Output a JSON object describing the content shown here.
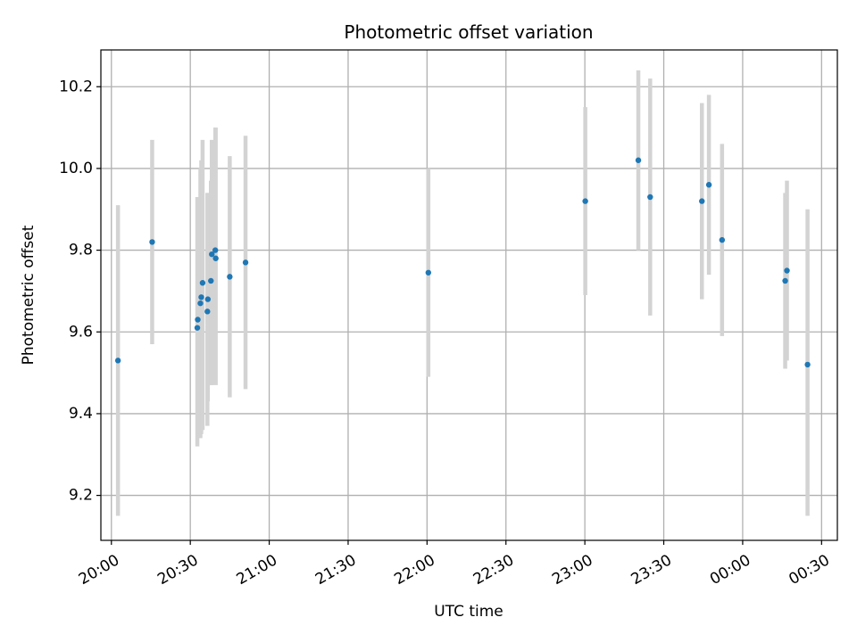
{
  "chart_data": {
    "type": "scatter",
    "title": "Photometric offset variation",
    "xlabel": "UTC time",
    "ylabel": "Photometric offset",
    "xlim": [
      "2000-01-01T19:56:00",
      "2000-01-02T00:36:00"
    ],
    "ylim": [
      9.09,
      10.29
    ],
    "grid": true,
    "x_ticks": [
      {
        "at": "2000-01-01T20:00:00",
        "label": "20:00"
      },
      {
        "at": "2000-01-01T20:30:00",
        "label": "20:30"
      },
      {
        "at": "2000-01-01T21:00:00",
        "label": "21:00"
      },
      {
        "at": "2000-01-01T21:30:00",
        "label": "21:30"
      },
      {
        "at": "2000-01-01T22:00:00",
        "label": "22:00"
      },
      {
        "at": "2000-01-01T22:30:00",
        "label": "22:30"
      },
      {
        "at": "2000-01-01T23:00:00",
        "label": "23:00"
      },
      {
        "at": "2000-01-01T23:30:00",
        "label": "23:30"
      },
      {
        "at": "2000-01-02T00:00:00",
        "label": "00:00"
      },
      {
        "at": "2000-01-02T00:30:00",
        "label": "00:30"
      }
    ],
    "y_ticks": [
      {
        "value": 9.2,
        "label": "9.2"
      },
      {
        "value": 9.4,
        "label": "9.4"
      },
      {
        "value": 9.6,
        "label": "9.6"
      },
      {
        "value": 9.8,
        "label": "9.8"
      },
      {
        "value": 10.0,
        "label": "10.0"
      },
      {
        "value": 10.2,
        "label": "10.2"
      }
    ],
    "point_color": "#1f77b4",
    "errorbar_color": "#d3d3d3",
    "points": [
      {
        "x": "2000-01-01T20:02:30",
        "y": 9.53,
        "ylow": 9.15,
        "yhigh": 9.91
      },
      {
        "x": "2000-01-01T20:15:30",
        "y": 9.82,
        "ylow": 9.57,
        "yhigh": 10.07
      },
      {
        "x": "2000-01-01T20:32:40",
        "y": 9.61,
        "ylow": 9.32,
        "yhigh": 9.93
      },
      {
        "x": "2000-01-01T20:32:50",
        "y": 9.63,
        "ylow": 9.34,
        "yhigh": 9.93
      },
      {
        "x": "2000-01-01T20:33:50",
        "y": 9.67,
        "ylow": 9.34,
        "yhigh": 10.0
      },
      {
        "x": "2000-01-01T20:34:10",
        "y": 9.685,
        "ylow": 9.35,
        "yhigh": 10.02
      },
      {
        "x": "2000-01-01T20:34:40",
        "y": 9.72,
        "ylow": 9.36,
        "yhigh": 10.07
      },
      {
        "x": "2000-01-01T20:36:30",
        "y": 9.65,
        "ylow": 9.37,
        "yhigh": 9.94
      },
      {
        "x": "2000-01-01T20:36:40",
        "y": 9.68,
        "ylow": 9.43,
        "yhigh": 9.94
      },
      {
        "x": "2000-01-01T20:37:50",
        "y": 9.725,
        "ylow": 9.47,
        "yhigh": 9.97
      },
      {
        "x": "2000-01-01T20:38:10",
        "y": 9.79,
        "ylow": 9.47,
        "yhigh": 10.07
      },
      {
        "x": "2000-01-01T20:39:30",
        "y": 9.8,
        "ylow": 9.5,
        "yhigh": 10.1
      },
      {
        "x": "2000-01-01T20:39:40",
        "y": 9.78,
        "ylow": 9.47,
        "yhigh": 10.1
      },
      {
        "x": "2000-01-01T20:45:00",
        "y": 9.735,
        "ylow": 9.44,
        "yhigh": 10.03
      },
      {
        "x": "2000-01-01T20:51:00",
        "y": 9.77,
        "ylow": 9.46,
        "yhigh": 10.08
      },
      {
        "x": "2000-01-01T22:00:30",
        "y": 9.745,
        "ylow": 9.49,
        "yhigh": 10.0
      },
      {
        "x": "2000-01-01T23:00:10",
        "y": 9.92,
        "ylow": 9.69,
        "yhigh": 10.15
      },
      {
        "x": "2000-01-01T23:20:20",
        "y": 10.02,
        "ylow": 9.8,
        "yhigh": 10.24
      },
      {
        "x": "2000-01-01T23:24:50",
        "y": 9.93,
        "ylow": 9.64,
        "yhigh": 10.22
      },
      {
        "x": "2000-01-01T23:44:30",
        "y": 9.92,
        "ylow": 9.68,
        "yhigh": 10.16
      },
      {
        "x": "2000-01-01T23:47:10",
        "y": 9.96,
        "ylow": 9.74,
        "yhigh": 10.18
      },
      {
        "x": "2000-01-01T23:52:10",
        "y": 9.825,
        "ylow": 9.59,
        "yhigh": 10.06
      },
      {
        "x": "2000-01-02T00:16:10",
        "y": 9.725,
        "ylow": 9.51,
        "yhigh": 9.94
      },
      {
        "x": "2000-01-02T00:16:50",
        "y": 9.75,
        "ylow": 9.53,
        "yhigh": 9.97
      },
      {
        "x": "2000-01-02T00:24:40",
        "y": 9.52,
        "ylow": 9.15,
        "yhigh": 9.9
      }
    ]
  }
}
